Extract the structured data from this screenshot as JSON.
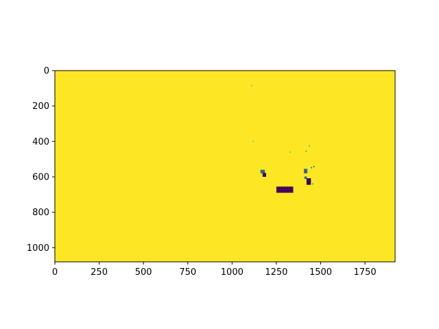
{
  "chart_data": {
    "type": "heatmap",
    "title": "",
    "xlabel": "",
    "ylabel": "",
    "xlim": [
      0,
      1920
    ],
    "ylim": [
      1080,
      0
    ],
    "x_ticks": [
      0,
      250,
      500,
      750,
      1000,
      1250,
      1500,
      1750
    ],
    "y_ticks": [
      0,
      200,
      400,
      600,
      800,
      1000
    ],
    "x_tick_labels": [
      "0",
      "250",
      "500",
      "750",
      "1000",
      "1250",
      "1500",
      "1750"
    ],
    "y_tick_labels": [
      "0",
      "200",
      "400",
      "600",
      "800",
      "1000"
    ],
    "grid": false,
    "colormap": "viridis",
    "background_value": "high",
    "background_color": "#fde725",
    "low_color": "#440154",
    "regions": [
      {
        "name": "rectangle-block",
        "x0": 1250,
        "x1": 1345,
        "y0": 655,
        "y1": 690,
        "color": "#440154"
      },
      {
        "name": "left-blob-a",
        "x0": 1160,
        "x1": 1185,
        "y0": 560,
        "y1": 580,
        "color": "#31688e"
      },
      {
        "name": "left-blob-b",
        "x0": 1172,
        "x1": 1192,
        "y0": 578,
        "y1": 600,
        "color": "#440154"
      },
      {
        "name": "right-blob-a",
        "x0": 1405,
        "x1": 1425,
        "y0": 555,
        "y1": 580,
        "color": "#31688e"
      },
      {
        "name": "right-blob-b",
        "x0": 1420,
        "x1": 1445,
        "y0": 608,
        "y1": 645,
        "color": "#440154"
      },
      {
        "name": "right-blob-c",
        "x0": 1408,
        "x1": 1422,
        "y0": 598,
        "y1": 612,
        "color": "#31688e"
      }
    ],
    "specks": [
      {
        "x": 1110,
        "y": 85,
        "color": "#7ad151"
      },
      {
        "x": 1120,
        "y": 400,
        "color": "#7ad151"
      },
      {
        "x": 1328,
        "y": 460,
        "color": "#7ad151"
      },
      {
        "x": 1436,
        "y": 425,
        "color": "#5ec962"
      },
      {
        "x": 1418,
        "y": 455,
        "color": "#35b779"
      },
      {
        "x": 1462,
        "y": 542,
        "color": "#21918c"
      },
      {
        "x": 1448,
        "y": 548,
        "color": "#21918c"
      },
      {
        "x": 1455,
        "y": 640,
        "color": "#35b779"
      }
    ]
  }
}
